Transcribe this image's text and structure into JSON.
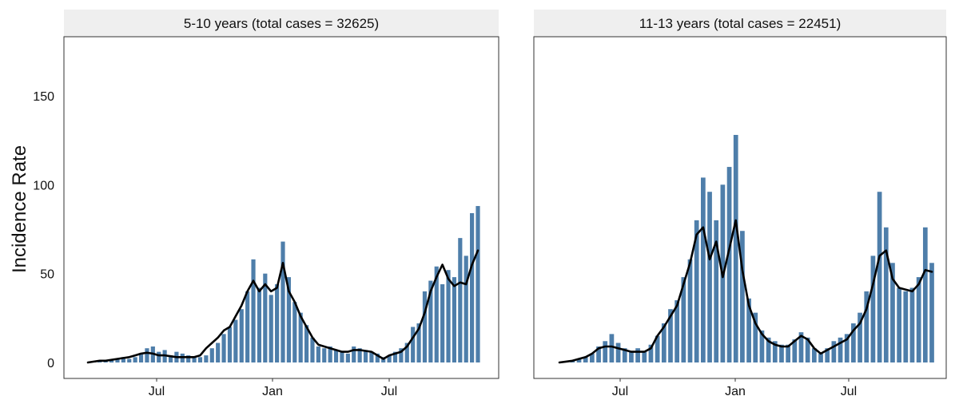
{
  "colors": {
    "bar": "#4e7eaa",
    "smooth_line": "#000000",
    "strip_bg": "#efefef",
    "panel_border": "#333333"
  },
  "chart_data": {
    "type": "bar",
    "ylabel": "Incidence Rate",
    "ylim": [
      0,
      180
    ],
    "yticks": [
      0,
      50,
      100,
      150
    ],
    "x_tick_labels": [
      "Jul",
      "Jan",
      "Jul"
    ],
    "grid": false,
    "smoothed_line": true,
    "panels": [
      {
        "title": "5-10 years (total cases = 32625)",
        "bars": [
          0,
          0.5,
          1,
          1,
          1.5,
          2,
          3,
          2,
          3,
          5,
          8,
          9,
          6,
          7,
          4,
          6,
          5,
          4,
          3,
          3,
          4,
          8,
          11,
          16,
          20,
          24,
          30,
          40,
          58,
          42,
          50,
          38,
          44,
          68,
          48,
          34,
          28,
          21,
          14,
          9,
          8,
          9,
          7,
          6,
          5,
          9,
          8,
          7,
          6,
          5,
          3,
          4,
          6,
          8,
          11,
          20,
          22,
          40,
          46,
          54,
          44,
          52,
          48,
          70,
          60,
          84,
          88
        ],
        "smooth": [
          0,
          0.5,
          1,
          1,
          1.5,
          2,
          2.5,
          3,
          4,
          5,
          5.5,
          5,
          4,
          4,
          3.5,
          3,
          3,
          3,
          3,
          4,
          8,
          11,
          14,
          18,
          20,
          26,
          32,
          40,
          46,
          40,
          44,
          40,
          42,
          56,
          40,
          34,
          26,
          20,
          14,
          10,
          9,
          8,
          7,
          6,
          6,
          7,
          7,
          6.5,
          6,
          4,
          2,
          4,
          5,
          6,
          9,
          14,
          19,
          28,
          40,
          48,
          55,
          47,
          43,
          45,
          44,
          55,
          63
        ]
      },
      {
        "title": "11-13 years (total cases = 22451)",
        "bars": [
          0,
          0.5,
          1,
          2,
          3,
          5,
          9,
          12,
          16,
          11,
          8,
          6,
          8,
          6,
          10,
          15,
          22,
          30,
          35,
          48,
          58,
          80,
          104,
          96,
          80,
          100,
          110,
          128,
          74,
          36,
          28,
          18,
          14,
          12,
          10,
          10,
          13,
          17,
          14,
          8,
          5,
          8,
          12,
          14,
          16,
          22,
          28,
          40,
          60,
          96,
          76,
          56,
          42,
          40,
          42,
          48,
          76,
          56
        ],
        "smooth": [
          0,
          0.5,
          1,
          2,
          3,
          5,
          8,
          9,
          9,
          8,
          7,
          6,
          6,
          6,
          8,
          15,
          20,
          26,
          32,
          44,
          56,
          72,
          76,
          58,
          68,
          48,
          64,
          80,
          52,
          32,
          22,
          16,
          12,
          10,
          9,
          9,
          12,
          15,
          13,
          8,
          5,
          7,
          9,
          11,
          13,
          18,
          22,
          30,
          44,
          60,
          63,
          47,
          42,
          41,
          40,
          44,
          52,
          51
        ]
      }
    ]
  }
}
